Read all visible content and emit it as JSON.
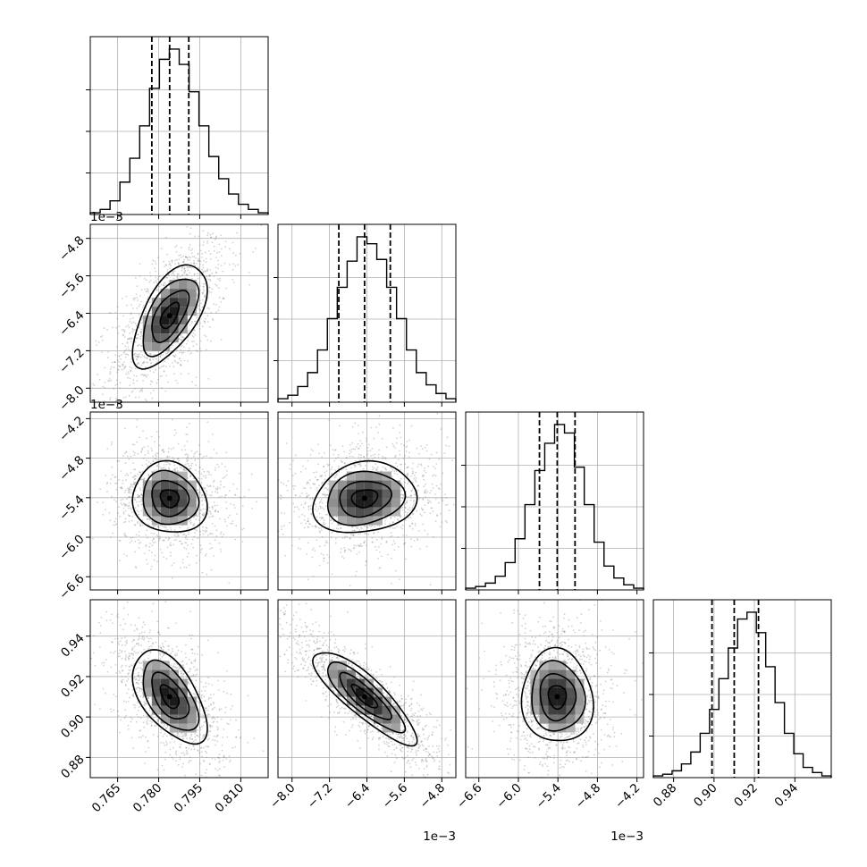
{
  "chart_data": {
    "type": "corner",
    "grid": true,
    "parameters": [
      {
        "range": [
          0.755,
          0.82
        ],
        "ticks": [
          0.765,
          0.78,
          0.795,
          0.81
        ],
        "tick_labels": [
          "0.765",
          "0.780",
          "0.795",
          "0.810"
        ],
        "offset": "",
        "quantiles": [
          0.7775,
          0.784,
          0.791
        ],
        "hist": [
          1,
          3,
          8,
          19,
          33,
          52,
          74,
          91,
          97,
          88,
          72,
          52,
          34,
          21,
          12,
          6,
          3,
          1
        ]
      },
      {
        "range": [
          -8.3,
          -4.5
        ],
        "ticks": [
          -8.0,
          -7.2,
          -6.4,
          -5.6,
          -4.8
        ],
        "tick_labels": [
          "-8.0",
          "-7.2",
          "-6.4",
          "-5.6",
          "-4.8"
        ],
        "offset": "1e-3",
        "quantiles": [
          -7.0,
          -6.45,
          -5.9
        ],
        "hist": [
          2,
          4,
          9,
          17,
          30,
          48,
          66,
          81,
          95,
          91,
          82,
          66,
          48,
          30,
          17,
          10,
          5,
          2
        ]
      },
      {
        "range": [
          -6.8,
          -4.1
        ],
        "ticks": [
          -6.6,
          -6.0,
          -5.4,
          -4.8,
          -4.2
        ],
        "tick_labels": [
          "-6.6",
          "-6.0",
          "-5.4",
          "-4.8",
          "-4.2"
        ],
        "offset": "1e-3",
        "quantiles": [
          -5.68,
          -5.41,
          -5.14
        ],
        "hist": [
          1,
          2,
          4,
          8,
          16,
          30,
          50,
          70,
          86,
          97,
          92,
          72,
          50,
          28,
          14,
          7,
          3,
          1
        ]
      },
      {
        "range": [
          0.87,
          0.958
        ],
        "ticks": [
          0.88,
          0.9,
          0.92,
          0.94
        ],
        "tick_labels": [
          "0.88",
          "0.90",
          "0.92",
          "0.94"
        ],
        "offset": "",
        "quantiles": [
          0.899,
          0.91,
          0.922
        ],
        "hist": [
          1,
          2,
          4,
          8,
          15,
          26,
          40,
          58,
          76,
          93,
          97,
          85,
          65,
          44,
          26,
          14,
          6,
          3,
          1
        ]
      }
    ],
    "pairs": [
      {
        "row": 1,
        "col": 0,
        "rho": 0.6
      },
      {
        "row": 2,
        "col": 0,
        "rho": -0.1
      },
      {
        "row": 2,
        "col": 1,
        "rho": 0.15
      },
      {
        "row": 3,
        "col": 0,
        "rho": -0.55
      },
      {
        "row": 3,
        "col": 1,
        "rho": -0.85
      },
      {
        "row": 3,
        "col": 2,
        "rho": -0.05
      }
    ],
    "contour_levels": [
      0.5,
      1.0,
      1.5,
      2.0
    ],
    "colors": {
      "line": "#000000",
      "grid": "#b0b0b0",
      "points": "#7f7f7f"
    }
  }
}
